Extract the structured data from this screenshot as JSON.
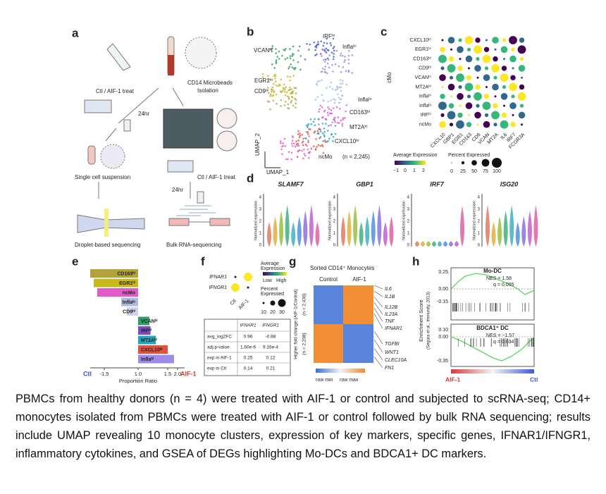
{
  "panel_a": {
    "label": "a",
    "treat": "Ctl / AIF-1 treat",
    "isolation": [
      "CD14 Microbeads",
      "Isolation"
    ],
    "time": "24hr",
    "suspension": "Single cell suspension",
    "droplet": "Droplet-based sequencing",
    "bulk": "Bulk RNA-sequencing"
  },
  "panel_b": {
    "label": "b",
    "clusters": [
      "IRFʰⁱ",
      "Inflaʰⁱ",
      "VCANʰⁱ",
      "EGR1ʰⁱ",
      "CD9ʰⁱ",
      "Inflaˡᵒ",
      "CD163ʰⁱ",
      "MT2Aʰⁱ",
      "CXCL10ʰⁱ",
      "ncMo"
    ],
    "n": "(n = 2,245)",
    "x_axis": "UMAP_1",
    "y_axis": "UMAP_2"
  },
  "panel_c": {
    "label": "c",
    "group": "cMo",
    "rows": [
      "CXCL10ʰⁱ",
      "EGR1ʰⁱ",
      "CD163ʰⁱ",
      "CD9ʰⁱ",
      "VCANʰⁱ",
      "MT2Aʰⁱ",
      "Inflaʰⁱ",
      "Inflaˡᵒ",
      "IRFʰⁱ",
      "ncMo"
    ],
    "columns": [
      "CXCL10",
      "GBP1",
      "EGR1",
      "CD163",
      "CD9",
      "VCAN",
      "MT2A",
      "IL6",
      "IRF7",
      "FCGR3A"
    ],
    "color_title": "Average Expression",
    "color_ticks": [
      "−1",
      "0",
      "1",
      "2"
    ],
    "size_title": "Percent Expressed",
    "size_ticks": [
      "0",
      "25",
      "50",
      "75",
      "100"
    ]
  },
  "panel_d": {
    "label": "d",
    "genes": [
      "SLAMF7",
      "GBP1",
      "IRF7",
      "ISG20"
    ],
    "y_axis": "Normalized expression",
    "yticks": [
      "0",
      "1",
      "2",
      "3",
      "4"
    ]
  },
  "panel_e": {
    "label": "e",
    "x_axis": "Proportion Ratio",
    "left_end": "Ctl",
    "right_end": "AIF-1",
    "xticks": [
      -1.5,
      {
        "value": 1,
        "label": "1.0"
      },
      1.5,
      {
        "value": 2,
        "label": "2.0"
      }
    ],
    "bars": [
      {
        "name": "CD163ʰⁱ",
        "value": -2.54,
        "color": "#b3a13c"
      },
      {
        "name": "EGR1ʰⁱ",
        "value": -2.28,
        "color": "#c9b81c"
      },
      {
        "name": "ncMo",
        "value": -2.02,
        "color": "#e35bc8"
      },
      {
        "name": "Inflaˡᵒ",
        "value": -0.25,
        "color": "#a9bde0"
      },
      {
        "name": "CD9ʰⁱ",
        "value": 0.17,
        "color": "#d2d2ee"
      },
      {
        "name": "VCANʰⁱ",
        "value": 1.19,
        "color": "#2f9f69"
      },
      {
        "name": "IRFʰⁱ",
        "value": 1.21,
        "color": "#7b4cc2"
      },
      {
        "name": "MT2Aʰⁱ",
        "value": 1.3,
        "color": "#22a7b8"
      },
      {
        "name": "CXCL10ʰⁱ",
        "value": 1.5,
        "color": "#e0523d"
      },
      {
        "name": "Inflaʰⁱ",
        "value": 1.82,
        "color": "#a08ae8"
      }
    ]
  },
  "panel_f": {
    "label": "f",
    "genes": [
      "IFNAR1",
      "IFNGR1"
    ],
    "groups": [
      "Ctl",
      "AIF-1"
    ],
    "color_title": [
      "Average",
      "Expression"
    ],
    "color_range": [
      "Low",
      "High"
    ],
    "size_title": [
      "Percent",
      "Expressed"
    ],
    "size_ticks": [
      "10",
      "20",
      "30"
    ],
    "table": {
      "columns": [
        "IFNAR1",
        "IFNGR1"
      ],
      "rows": [
        [
          "avg_log2FC",
          "0.96",
          "-0.88"
        ],
        [
          "adj.p-value",
          "1.60e-6",
          "9.16e-4"
        ],
        [
          "exp in AIF-1",
          "0.25",
          "0.12"
        ],
        [
          "exp in Ctl",
          "0.14",
          "0.21"
        ]
      ]
    }
  },
  "panel_g": {
    "label": "g",
    "title": "Sorted CD14⁺ Monocytes",
    "columns": [
      "Control",
      "AIF-1"
    ],
    "y_axis": "Higher fold change (AIF-1/Control)",
    "n_top": "(n = 2,436)",
    "n_bottom": "(n = 2,208)",
    "genes_top": [
      "IL6",
      "IL1B",
      "IL12B",
      "IL23A",
      "TNF",
      "IFNAR1"
    ],
    "genes_bottom": [
      "TGFBI",
      "WNT1",
      "CLEC10A",
      "FN1"
    ],
    "legend": [
      "row min",
      "row max"
    ]
  },
  "panel_h": {
    "label": "h",
    "y_axis": "Enrichment Score",
    "source": "(Segura et al., Immunity, 2013)",
    "left_end": "AIF-1",
    "right_end": "Ctl",
    "plots": [
      {
        "title": "Mo-DC",
        "nes": "NES = 1.58",
        "q": "q = 0.005",
        "yticks": [
          "0.25",
          "0.00",
          "-0.15"
        ]
      },
      {
        "title": "BDCA1⁺ DC",
        "nes": "NES = −1.57",
        "q": "q = 0.034",
        "yticks": [
          "0.10",
          "0.00",
          "-0.35"
        ]
      }
    ]
  },
  "caption": "PBMCs from healthy donors (n = 4) were treated with AIF-1 or control and subjected to scRNA-seq; CD14+ monocytes isolated from PBMCs were treated with AIF-1 or control followed by bulk RNA sequencing; results include UMAP revealing 10 monocyte clusters, expression of key markers, specific genes, IFNAR1/IFNGR1, inflammatory cytokines, and GSEA of DEGs highlighting Mo-DCs and BDCA1+ DC markers."
}
